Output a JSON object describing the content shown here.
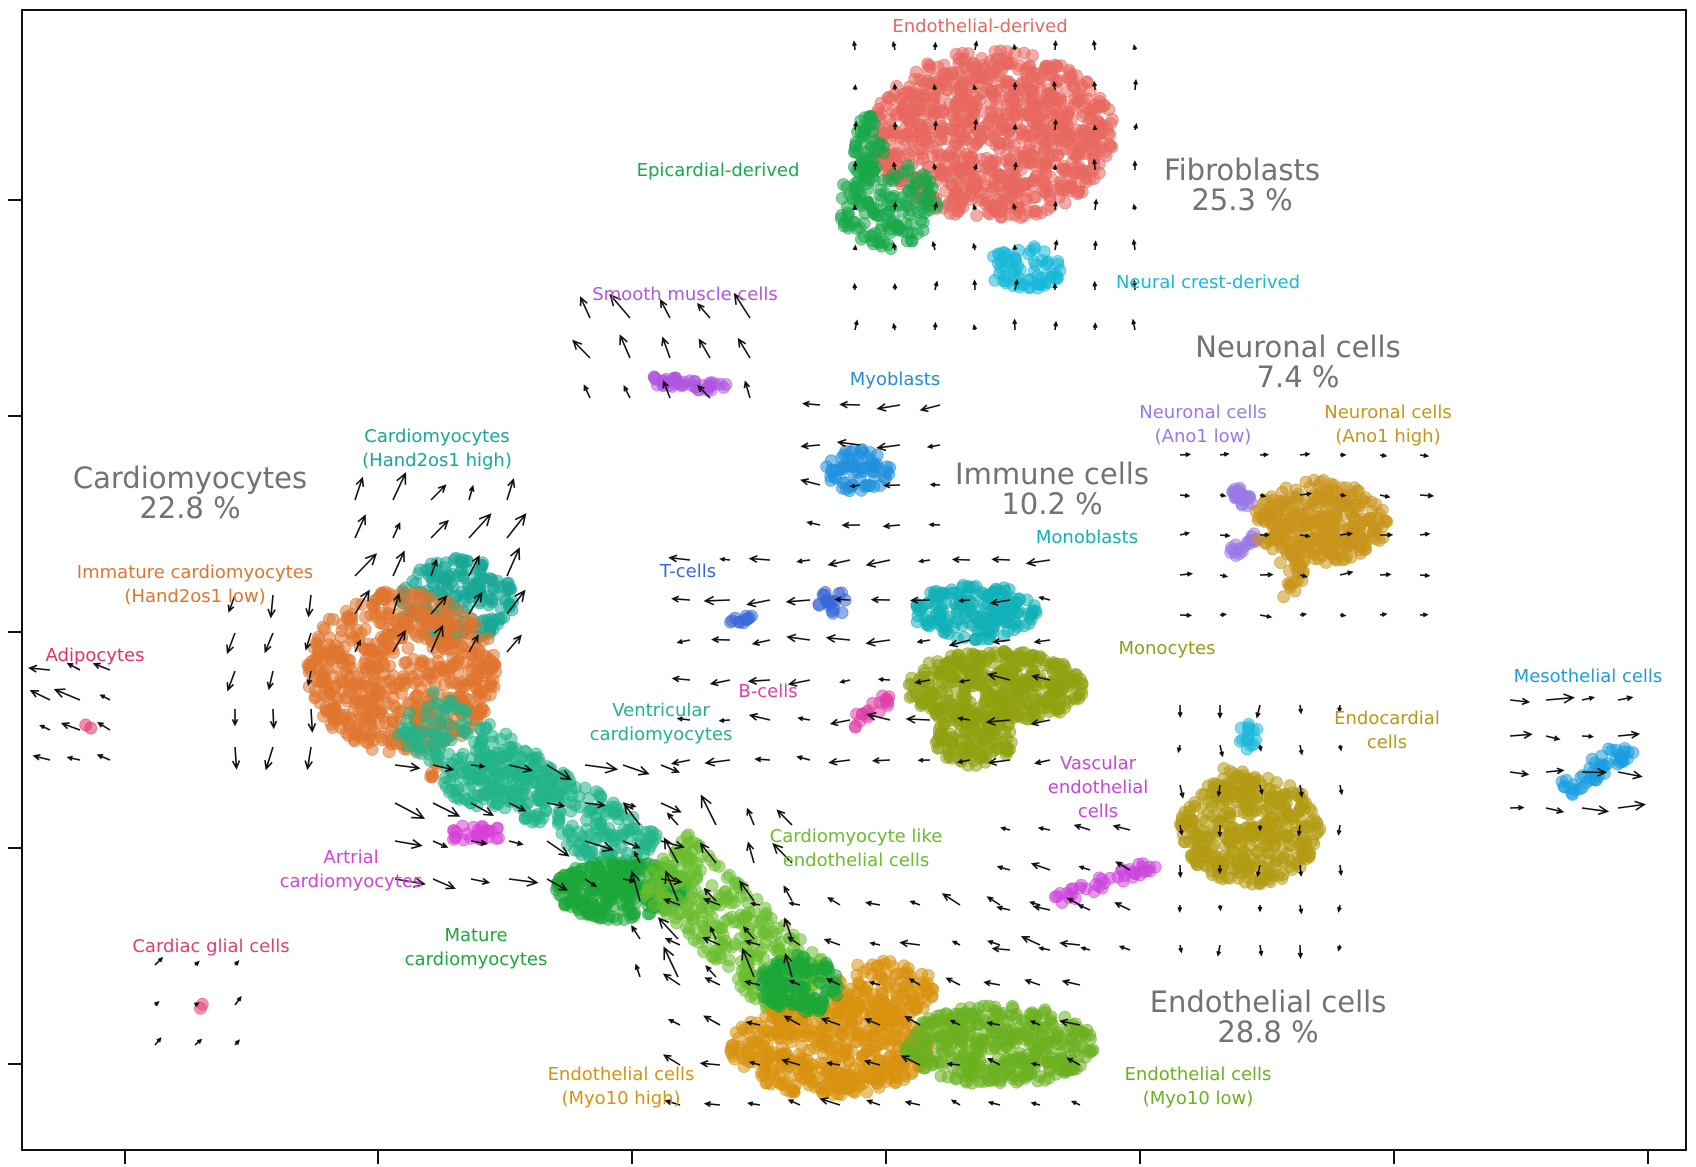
{
  "chart_data": {
    "type": "scatter",
    "title": "",
    "xlabel": "",
    "ylabel": "",
    "x_ticks": 7,
    "y_ticks": 5,
    "grid": false,
    "colors": {
      "endothelial_derived": "#e8675f",
      "epicardial_derived": "#1aa84a",
      "neural_crest": "#18b8d8",
      "smooth_muscle": "#b056e0",
      "myoblasts": "#1f8fdc",
      "neuronal_low": "#9a78e8",
      "neuronal_high": "#c9941a",
      "cm_hand2os1_high": "#17a896",
      "immature_cm": "#e0752e",
      "adipocytes": "#e8306a",
      "tcells": "#3a68d8",
      "monoblasts": "#10b0b8",
      "monocytes": "#8fa10f",
      "bcells": "#e040a8",
      "ventricular_cm": "#22b488",
      "artrial_cm": "#d840d8",
      "cm_like_endo": "#6abd2e",
      "mature_cm": "#1ca838",
      "endo_myo10_high": "#d9920f",
      "endo_myo10_low": "#6cb020",
      "vascular_endo": "#cc44dd",
      "endocardial": "#b39a12",
      "mesothelial": "#1a9ee0",
      "cardiac_glial": "#e04070",
      "arrow": "#111111",
      "group_label": "#737373"
    },
    "group_labels": [
      {
        "name": "Fibroblasts",
        "pct": "25.3 %"
      },
      {
        "name": "Neuronal cells",
        "pct": "7.4 %"
      },
      {
        "name": "Cardiomyocytes",
        "pct": "22.8 %"
      },
      {
        "name": "Immune cells",
        "pct": "10.2 %"
      },
      {
        "name": "Endothelial cells",
        "pct": "28.8 %"
      }
    ],
    "cluster_labels": [
      {
        "key": "endothelial_derived",
        "lines": [
          "Endothelial-derived"
        ]
      },
      {
        "key": "epicardial_derived",
        "lines": [
          "Epicardial-derived"
        ]
      },
      {
        "key": "neural_crest",
        "lines": [
          "Neural crest-derived"
        ]
      },
      {
        "key": "smooth_muscle",
        "lines": [
          "Smooth muscle cells"
        ]
      },
      {
        "key": "myoblasts",
        "lines": [
          "Myoblasts"
        ]
      },
      {
        "key": "neuronal_low",
        "lines": [
          "Neuronal cells",
          "(Ano1 low)"
        ]
      },
      {
        "key": "neuronal_high",
        "lines": [
          "Neuronal cells",
          "(Ano1 high)"
        ]
      },
      {
        "key": "cm_hand2os1_high",
        "lines": [
          "Cardiomyocytes",
          "(Hand2os1 high)"
        ]
      },
      {
        "key": "immature_cm",
        "lines": [
          "Immature cardiomyocytes",
          "(Hand2os1 low)"
        ]
      },
      {
        "key": "adipocytes",
        "lines": [
          "Adipocytes"
        ]
      },
      {
        "key": "tcells",
        "lines": [
          "T-cells"
        ]
      },
      {
        "key": "monoblasts",
        "lines": [
          "Monoblasts"
        ]
      },
      {
        "key": "monocytes",
        "lines": [
          "Monocytes"
        ]
      },
      {
        "key": "bcells",
        "lines": [
          "B-cells"
        ]
      },
      {
        "key": "ventricular_cm",
        "lines": [
          "Ventricular",
          "cardiomyocytes"
        ]
      },
      {
        "key": "artrial_cm",
        "lines": [
          "Artrial",
          "cardiomyocytes"
        ]
      },
      {
        "key": "cm_like_endo",
        "lines": [
          "Cardiomyocyte like",
          "endothelial cells"
        ]
      },
      {
        "key": "mature_cm",
        "lines": [
          "Mature",
          "cardiomyocytes"
        ]
      },
      {
        "key": "endo_myo10_high",
        "lines": [
          "Endothelial cells",
          "(Myo10 high)"
        ]
      },
      {
        "key": "endo_myo10_low",
        "lines": [
          "Endothelial cells",
          "(Myo10 low)"
        ]
      },
      {
        "key": "vascular_endo",
        "lines": [
          "Vascular",
          "endothelial",
          "cells"
        ]
      },
      {
        "key": "endocardial",
        "lines": [
          "Endocardial",
          "cells"
        ]
      },
      {
        "key": "mesothelial",
        "lines": [
          "Mesothelial cells"
        ]
      },
      {
        "key": "cardiac_glial",
        "lines": [
          "Cardiac glial cells"
        ]
      }
    ]
  }
}
